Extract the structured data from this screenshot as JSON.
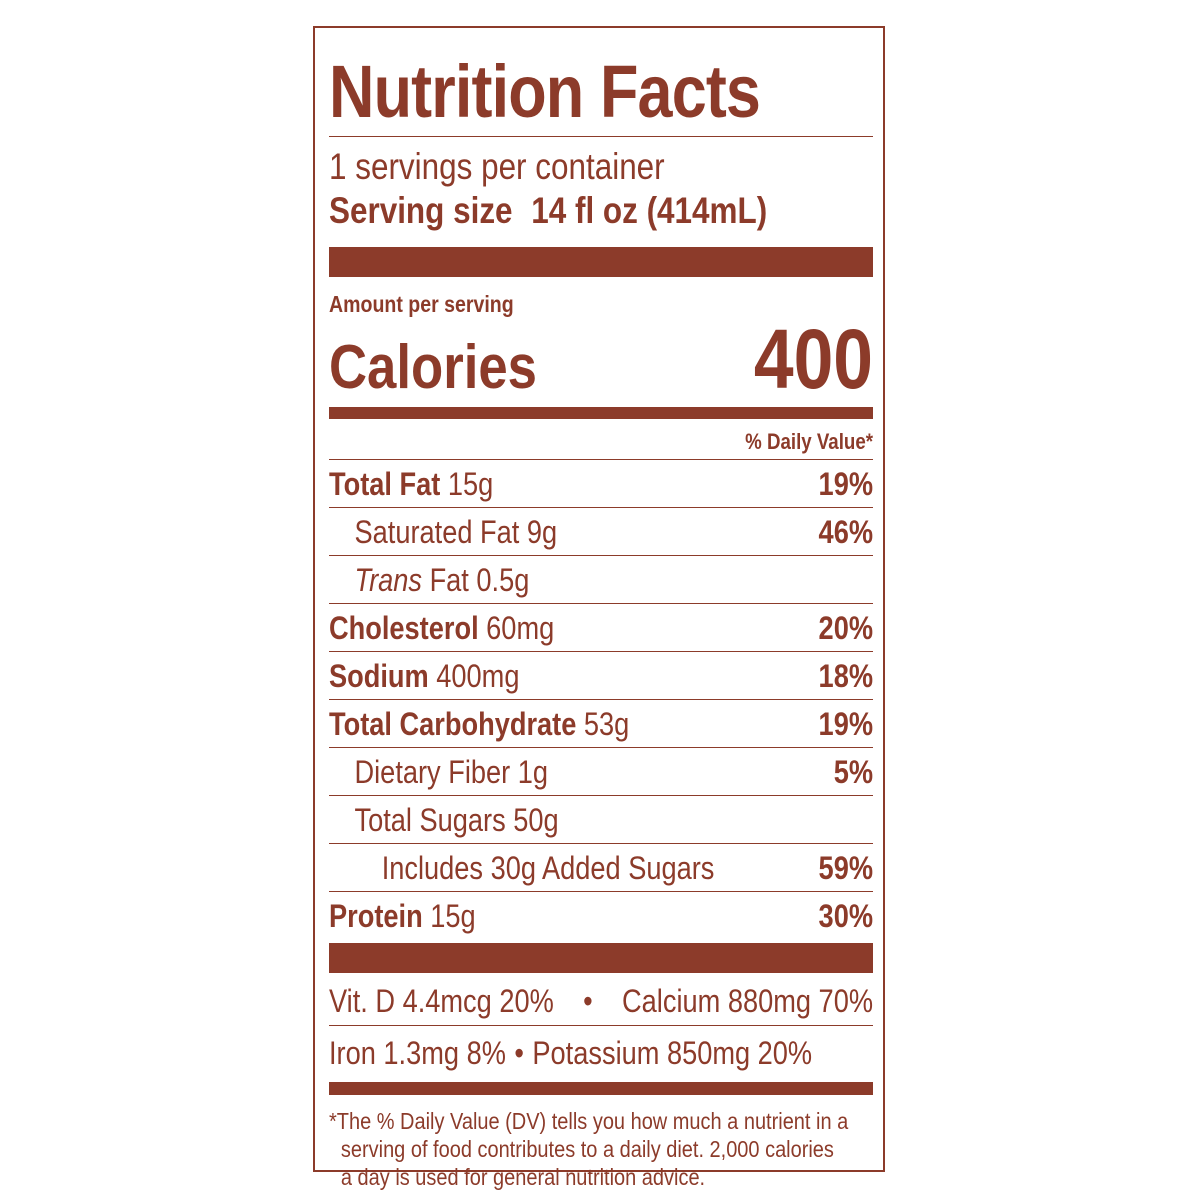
{
  "label": {
    "title": "Nutrition Facts",
    "servings_per_container": "1 servings per container",
    "serving_size_label": "Serving size",
    "serving_size_value": "14 fl oz (414mL)",
    "amount_per_serving": "Amount per serving",
    "calories_label": "Calories",
    "calories_value": "400",
    "daily_value_header": "% Daily Value*",
    "nutrients": [
      {
        "name": "Total Fat",
        "amount": "15g",
        "dv": "19%",
        "bold": true,
        "indent": 0
      },
      {
        "name": "Saturated Fat",
        "amount": "9g",
        "dv": "46%",
        "bold": false,
        "indent": 1
      },
      {
        "name": "Trans",
        "name_suffix": "Fat",
        "amount": "0.5g",
        "dv": "",
        "bold": false,
        "indent": 1
      },
      {
        "name": "Cholesterol",
        "amount": "60mg",
        "dv": "20%",
        "bold": true,
        "indent": 0
      },
      {
        "name": "Sodium",
        "amount": "400mg",
        "dv": "18%",
        "bold": true,
        "indent": 0
      },
      {
        "name": "Total Carbohydrate",
        "amount": "53g",
        "dv": "19%",
        "bold": true,
        "indent": 0
      },
      {
        "name": "Dietary Fiber",
        "amount": "1g",
        "dv": "5%",
        "bold": false,
        "indent": 1
      },
      {
        "name": "Total Sugars",
        "amount": "50g",
        "dv": "",
        "bold": false,
        "indent": 1
      },
      {
        "name": "Includes 30g Added Sugars",
        "amount": "",
        "dv": "59%",
        "bold": false,
        "indent": 2
      },
      {
        "name": "Protein",
        "amount": "15g",
        "dv": "30%",
        "bold": true,
        "indent": 0
      }
    ],
    "vitamins": {
      "vit_d": "Vit. D 4.4mcg 20%",
      "calcium": "Calcium 880mg 70%",
      "iron": "Iron 1.3mg 8%",
      "potassium": "Potassium 850mg 20%",
      "separator": "•"
    },
    "footnote": {
      "line1": "*The % Daily Value (DV) tells you how much a nutrient in a",
      "line2": "serving of food contributes to a daily diet. 2,000 calories",
      "line3": "a day is used for general nutrition advice."
    }
  },
  "colors": {
    "ink": "#8c3b2a",
    "background": "#ffffff"
  }
}
